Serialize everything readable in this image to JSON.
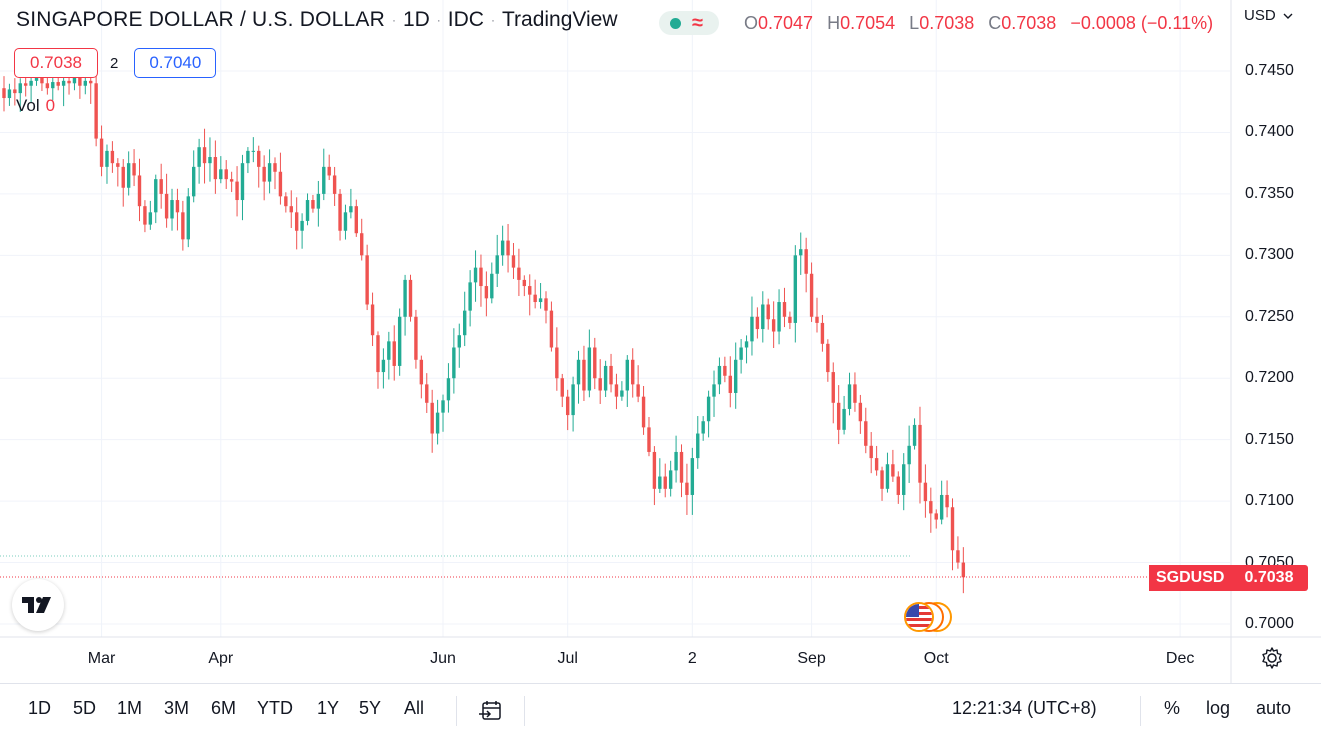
{
  "header": {
    "symbol_title": "SINGAPORE DOLLAR / U.S. DOLLAR",
    "interval": "1D",
    "exchange": "IDC",
    "source": "TradingView",
    "separator": "·",
    "status_icons": [
      "market-open-dot-icon",
      "delayed-data-wave-icon"
    ],
    "wave_glyph": "≈"
  },
  "ohlc": {
    "o_key": "O",
    "o_val": "0.7047",
    "h_key": "H",
    "h_val": "0.7054",
    "l_key": "L",
    "l_val": "0.7038",
    "c_key": "C",
    "c_val": "0.7038",
    "change": "−0.0008 (−0.11%)"
  },
  "quote": {
    "bid": "0.7038",
    "spread": "2",
    "ask": "0.7040"
  },
  "volume": {
    "label": "Vol",
    "value": "0"
  },
  "currency_selector": "USD",
  "colors": {
    "up": "#22ab94",
    "down": "#ef5350",
    "bid": "#f23645",
    "ask": "#2962ff",
    "grid": "#f0f3fa",
    "text": "#131722"
  },
  "chart_data": {
    "type": "candlestick",
    "symbol": "SGDUSD",
    "last_price": "0.7038",
    "y_ticks": [
      "0.7450",
      "0.7400",
      "0.7350",
      "0.7300",
      "0.7250",
      "0.7200",
      "0.7150",
      "0.7100",
      "0.7050",
      "0.7000"
    ],
    "ylim": [
      0.699,
      0.7465
    ],
    "x_ticks": [
      "Mar",
      "Apr",
      "Jun",
      "Jul",
      "2",
      "Sep",
      "Oct",
      "Dec"
    ],
    "x_tick_sessions": [
      18,
      40,
      81,
      104,
      127,
      149,
      172,
      217
    ],
    "closes": [
      0.7428,
      0.7435,
      0.7432,
      0.744,
      0.7438,
      0.7442,
      0.7445,
      0.744,
      0.7436,
      0.7441,
      0.7438,
      0.7442,
      0.744,
      0.7446,
      0.7438,
      0.7442,
      0.744,
      0.7395,
      0.7372,
      0.7385,
      0.7375,
      0.7372,
      0.7355,
      0.7375,
      0.7365,
      0.734,
      0.7325,
      0.7335,
      0.7362,
      0.735,
      0.733,
      0.7345,
      0.7335,
      0.7313,
      0.7348,
      0.7372,
      0.7388,
      0.7375,
      0.738,
      0.7362,
      0.737,
      0.7362,
      0.736,
      0.7345,
      0.7375,
      0.7385,
      0.7385,
      0.7372,
      0.736,
      0.7375,
      0.7368,
      0.7348,
      0.734,
      0.7335,
      0.732,
      0.7328,
      0.7345,
      0.7338,
      0.735,
      0.7372,
      0.7365,
      0.735,
      0.732,
      0.7335,
      0.734,
      0.7318,
      0.73,
      0.726,
      0.7235,
      0.7205,
      0.7215,
      0.723,
      0.721,
      0.725,
      0.728,
      0.725,
      0.7215,
      0.7195,
      0.718,
      0.7155,
      0.7172,
      0.7182,
      0.72,
      0.7225,
      0.7235,
      0.7255,
      0.7278,
      0.729,
      0.7275,
      0.7265,
      0.7285,
      0.73,
      0.7312,
      0.73,
      0.729,
      0.728,
      0.7275,
      0.7268,
      0.7262,
      0.7265,
      0.7255,
      0.7225,
      0.72,
      0.7185,
      0.717,
      0.7195,
      0.7215,
      0.719,
      0.7225,
      0.72,
      0.719,
      0.721,
      0.7195,
      0.7185,
      0.719,
      0.7215,
      0.7195,
      0.7185,
      0.716,
      0.714,
      0.711,
      0.712,
      0.711,
      0.7125,
      0.714,
      0.7115,
      0.7105,
      0.7135,
      0.7155,
      0.7165,
      0.7185,
      0.7195,
      0.721,
      0.7202,
      0.7188,
      0.7215,
      0.7225,
      0.723,
      0.725,
      0.724,
      0.726,
      0.7248,
      0.7238,
      0.7262,
      0.725,
      0.7245,
      0.73,
      0.7305,
      0.7285,
      0.725,
      0.7245,
      0.7228,
      0.7205,
      0.718,
      0.7158,
      0.7175,
      0.7195,
      0.718,
      0.7165,
      0.7145,
      0.7135,
      0.7125,
      0.711,
      0.713,
      0.712,
      0.7105,
      0.713,
      0.7145,
      0.7162,
      0.7115,
      0.71,
      0.709,
      0.7085,
      0.7105,
      0.7095,
      0.706,
      0.705,
      0.7038
    ]
  },
  "x_axis": {
    "ticks": [
      {
        "label": "Mar"
      },
      {
        "label": "Apr"
      },
      {
        "label": "Jun"
      },
      {
        "label": "Jul"
      },
      {
        "label": "2"
      },
      {
        "label": "Sep"
      },
      {
        "label": "Oct"
      },
      {
        "label": "Dec"
      }
    ]
  },
  "toolbar": {
    "ranges": [
      "1D",
      "5D",
      "1M",
      "3M",
      "6M",
      "YTD",
      "1Y",
      "5Y",
      "All"
    ],
    "clock": "12:21:34 (UTC+8)",
    "percent": "%",
    "log": "log",
    "auto": "auto",
    "icons": [
      "goto-date-icon",
      "chart-settings-gear-icon",
      "tradingview-logo-icon",
      "economic-event-flag-icon"
    ]
  }
}
